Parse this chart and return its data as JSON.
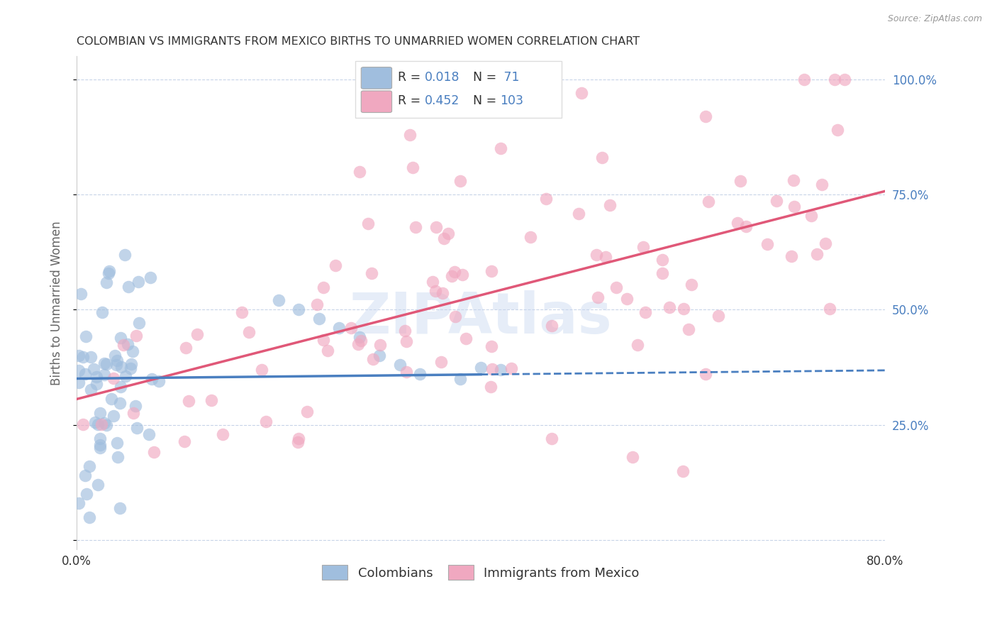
{
  "title": "COLOMBIAN VS IMMIGRANTS FROM MEXICO BIRTHS TO UNMARRIED WOMEN CORRELATION CHART",
  "source": "Source: ZipAtlas.com",
  "ylabel": "Births to Unmarried Women",
  "x_min": 0.0,
  "x_max": 0.8,
  "y_min": 0.0,
  "y_max": 1.05,
  "color_colombian_fill": "#a0bede",
  "color_mexico_fill": "#f0a8c0",
  "color_line_colombian": "#4a7fc0",
  "color_line_mexico": "#e05878",
  "color_legend_val": "#4a7fc0",
  "color_text_dark": "#333333",
  "color_grid": "#c8d4e8",
  "color_watermark": "#c8d8f0",
  "background_color": "#ffffff",
  "R_colombian": 0.018,
  "N_colombian": 71,
  "R_mexico": 0.452,
  "N_mexico": 103
}
